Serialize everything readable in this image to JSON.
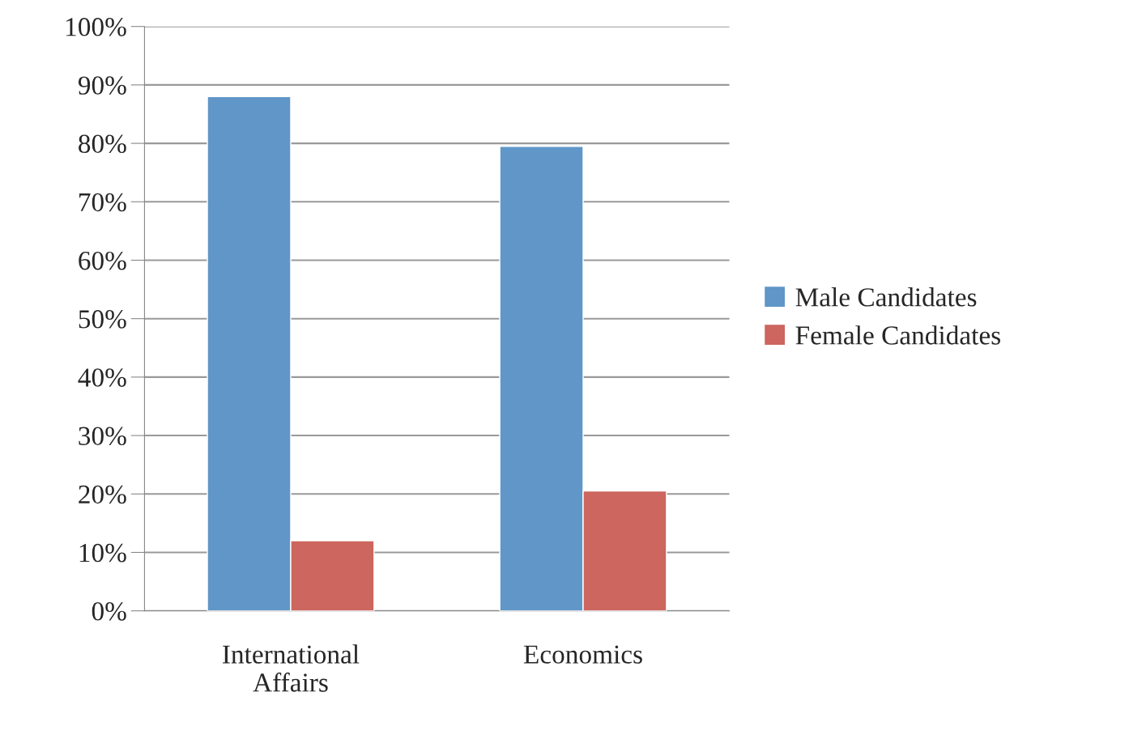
{
  "chart_data": {
    "type": "bar",
    "categories": [
      "International\nAffairs",
      "Economics"
    ],
    "series": [
      {
        "name": "Male Candidates",
        "color": "#6096c8",
        "values": [
          88,
          79.5
        ]
      },
      {
        "name": "Female Candidates",
        "color": "#cc665e",
        "values": [
          12,
          20.5
        ]
      }
    ],
    "ylim": [
      0,
      100
    ],
    "yticks": [
      {
        "value": 0,
        "label": "0%"
      },
      {
        "value": 10,
        "label": "10%"
      },
      {
        "value": 20,
        "label": "20%"
      },
      {
        "value": 30,
        "label": "30%"
      },
      {
        "value": 40,
        "label": "40%"
      },
      {
        "value": 50,
        "label": "50%"
      },
      {
        "value": 60,
        "label": "60%"
      },
      {
        "value": 70,
        "label": "70%"
      },
      {
        "value": 80,
        "label": "80%"
      },
      {
        "value": 90,
        "label": "90%"
      },
      {
        "value": 100,
        "label": "100%"
      }
    ],
    "grid": "y",
    "legend": "right"
  }
}
